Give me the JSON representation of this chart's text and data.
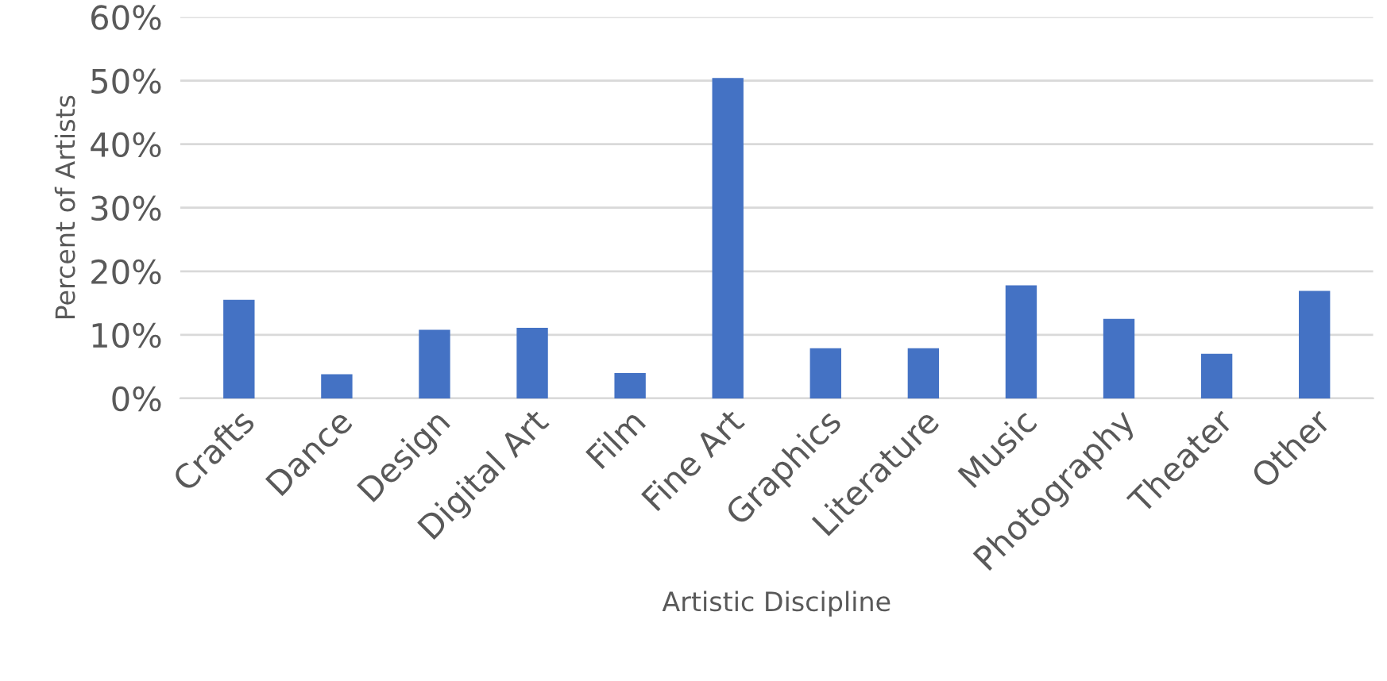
{
  "chart_data": {
    "type": "bar",
    "xlabel": "Artistic Discipline",
    "ylabel": "Percent of Artists",
    "categories": [
      "Crafts",
      "Dance",
      "Design",
      "Digital Art",
      "Film",
      "Fine Art",
      "Graphics",
      "Literature",
      "Music",
      "Photography",
      "Theater",
      "Other"
    ],
    "values": [
      15.5,
      3.8,
      10.8,
      11.1,
      4.0,
      50.4,
      7.9,
      7.9,
      17.8,
      12.5,
      7.0,
      16.9
    ],
    "color": "#4472c4",
    "ylim": [
      0,
      60
    ],
    "yticks": [
      {
        "value": 0,
        "label": "0%"
      },
      {
        "value": 10,
        "label": "10%"
      },
      {
        "value": 20,
        "label": "20%"
      },
      {
        "value": 30,
        "label": "30%"
      },
      {
        "value": 40,
        "label": "40%"
      },
      {
        "value": 50,
        "label": "50%"
      },
      {
        "value": 60,
        "label": "60%"
      }
    ],
    "grid": "y",
    "legend": false
  }
}
